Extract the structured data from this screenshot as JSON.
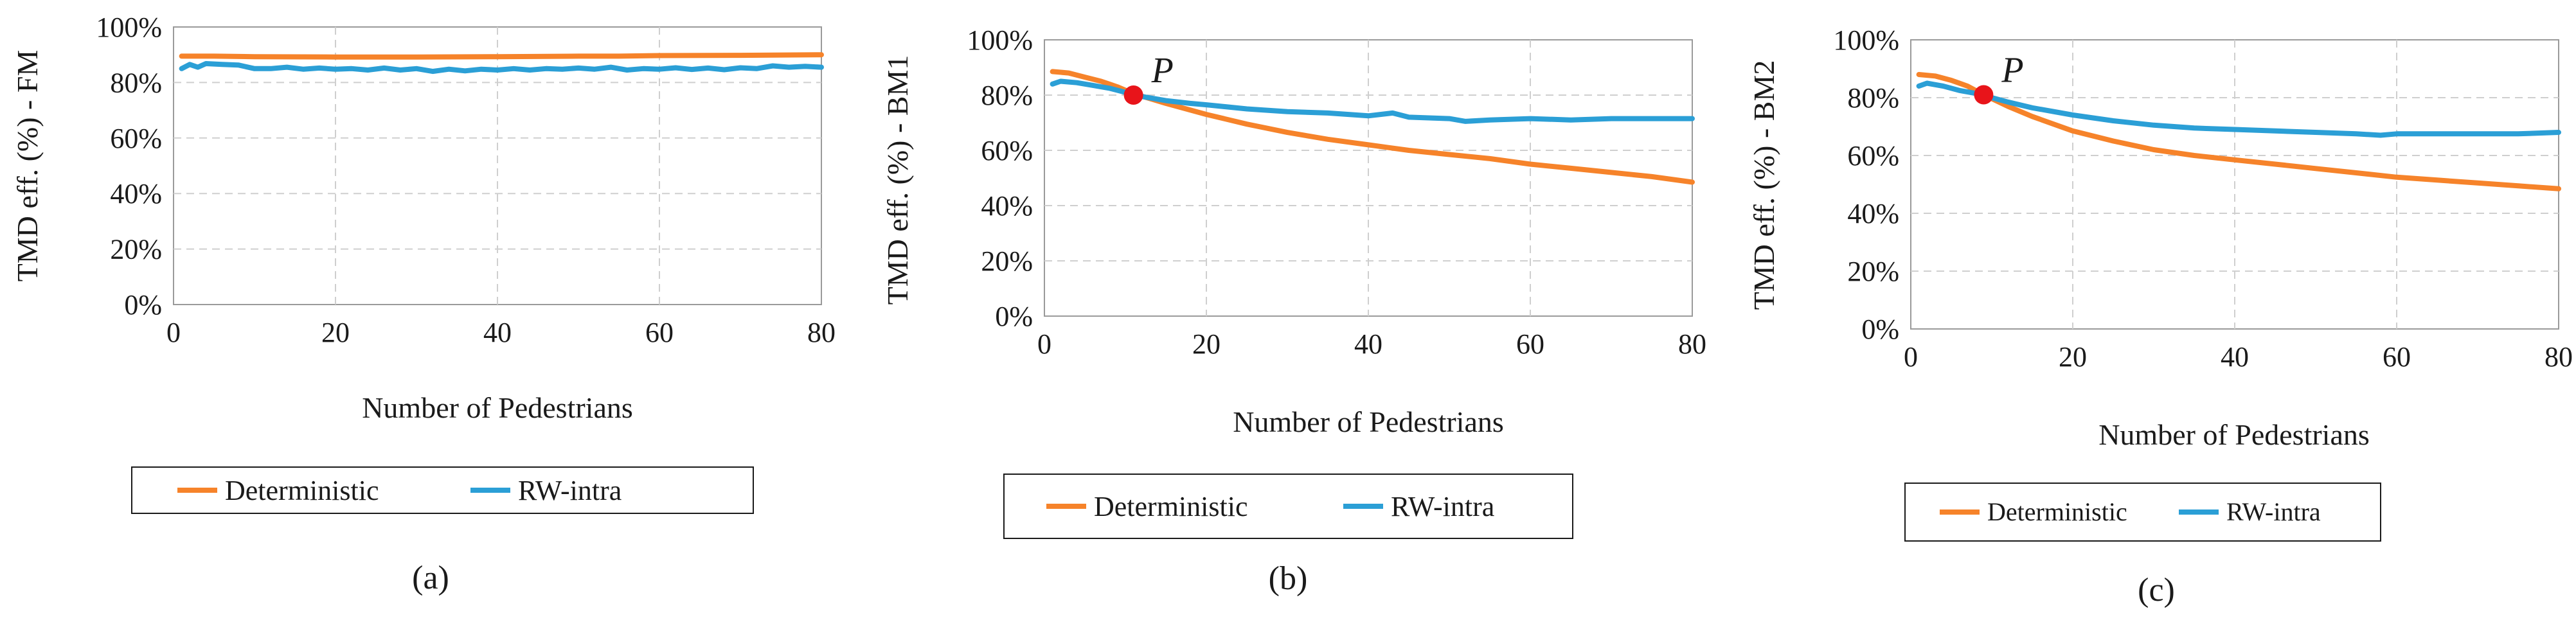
{
  "colors": {
    "deterministic": "#f6832a",
    "rw_intra": "#2b9fd6",
    "grid": "#cfcfcf",
    "axis": "#9a9a9a",
    "marker": "#e8141a"
  },
  "chart_data": [
    {
      "type": "line",
      "panel_label": "(a)",
      "xlabel": "Number of Pedestrians",
      "ylabel": "TMD eff. (%) - FM",
      "xlim": [
        0,
        80
      ],
      "ylim": [
        0,
        100
      ],
      "x_ticks": [
        "0",
        "20",
        "40",
        "60",
        "80"
      ],
      "y_ticks": [
        "0%",
        "20%",
        "40%",
        "60%",
        "80%",
        "100%"
      ],
      "legend": [
        "Deterministic",
        "RW-intra"
      ],
      "series": [
        {
          "name": "Deterministic",
          "x": [
            1,
            5,
            10,
            20,
            30,
            40,
            50,
            55,
            60,
            70,
            80
          ],
          "y": [
            89.5,
            89.5,
            89.3,
            89.2,
            89.2,
            89.3,
            89.5,
            89.5,
            89.7,
            89.8,
            90.0
          ]
        },
        {
          "name": "RW-intra",
          "x": [
            1,
            2,
            3,
            4,
            6,
            8,
            10,
            12,
            14,
            16,
            18,
            20,
            22,
            24,
            26,
            28,
            30,
            32,
            34,
            36,
            38,
            40,
            42,
            44,
            46,
            48,
            50,
            52,
            54,
            56,
            58,
            60,
            62,
            64,
            66,
            68,
            70,
            72,
            74,
            76,
            78,
            80
          ],
          "y": [
            85.0,
            86.5,
            85.5,
            86.8,
            86.5,
            86.3,
            85.0,
            85.0,
            85.5,
            84.8,
            85.2,
            84.8,
            85.0,
            84.5,
            85.2,
            84.5,
            85.0,
            84.0,
            84.8,
            84.2,
            84.8,
            84.5,
            85.0,
            84.5,
            85.0,
            84.8,
            85.2,
            84.8,
            85.5,
            84.5,
            85.0,
            84.8,
            85.3,
            84.7,
            85.2,
            84.6,
            85.3,
            85.0,
            86.0,
            85.5,
            85.8,
            85.5
          ]
        }
      ]
    },
    {
      "type": "line",
      "panel_label": "(b)",
      "xlabel": "Number of Pedestrians",
      "ylabel": "TMD eff. (%) - BM1",
      "xlim": [
        0,
        80
      ],
      "ylim": [
        0,
        100
      ],
      "x_ticks": [
        "0",
        "20",
        "40",
        "60",
        "80"
      ],
      "y_ticks": [
        "0%",
        "20%",
        "40%",
        "60%",
        "80%",
        "100%"
      ],
      "legend": [
        "Deterministic",
        "RW-intra"
      ],
      "annotation": {
        "text": "P",
        "x": 11,
        "y": 80
      },
      "series": [
        {
          "name": "Deterministic",
          "x": [
            1,
            3,
            5,
            7,
            9,
            11,
            15,
            20,
            25,
            30,
            35,
            40,
            45,
            50,
            55,
            60,
            65,
            70,
            75,
            80
          ],
          "y": [
            88.5,
            88.0,
            86.5,
            85.0,
            83.0,
            80.5,
            77.0,
            73.0,
            69.5,
            66.5,
            64.0,
            62.0,
            60.0,
            58.5,
            57.0,
            55.0,
            53.5,
            52.0,
            50.5,
            48.5
          ]
        },
        {
          "name": "RW-intra",
          "x": [
            1,
            2,
            4,
            6,
            8,
            10,
            12,
            15,
            18,
            20,
            25,
            30,
            35,
            40,
            43,
            45,
            50,
            52,
            55,
            60,
            65,
            70,
            75,
            80
          ],
          "y": [
            84.0,
            85.0,
            84.5,
            83.5,
            82.5,
            81.0,
            79.5,
            78.0,
            77.0,
            76.5,
            75.0,
            74.0,
            73.5,
            72.5,
            73.5,
            72.0,
            71.5,
            70.5,
            71.0,
            71.5,
            71.0,
            71.5,
            71.5,
            71.5
          ]
        }
      ]
    },
    {
      "type": "line",
      "panel_label": "(c)",
      "xlabel": "Number of Pedestrians",
      "ylabel": "TMD eff. (%) - BM2",
      "xlim": [
        0,
        80
      ],
      "ylim": [
        0,
        100
      ],
      "x_ticks": [
        "0",
        "20",
        "40",
        "60",
        "80"
      ],
      "y_ticks": [
        "0%",
        "20%",
        "40%",
        "60%",
        "80%",
        "100%"
      ],
      "legend": [
        "Deterministic",
        "RW-intra"
      ],
      "annotation": {
        "text": "P",
        "x": 9,
        "y": 81
      },
      "series": [
        {
          "name": "Deterministic",
          "x": [
            1,
            3,
            5,
            7,
            9,
            12,
            15,
            20,
            25,
            30,
            35,
            40,
            45,
            50,
            55,
            60,
            65,
            70,
            75,
            80
          ],
          "y": [
            88.0,
            87.5,
            86.0,
            84.0,
            81.0,
            77.0,
            73.5,
            68.5,
            65.0,
            62.0,
            60.0,
            58.5,
            57.0,
            55.5,
            54.0,
            52.5,
            51.5,
            50.5,
            49.5,
            48.5
          ]
        },
        {
          "name": "RW-intra",
          "x": [
            1,
            2,
            4,
            6,
            8,
            10,
            12,
            15,
            18,
            20,
            25,
            30,
            35,
            40,
            45,
            50,
            55,
            58,
            60,
            65,
            70,
            75,
            80
          ],
          "y": [
            84.0,
            85.0,
            84.0,
            82.5,
            81.5,
            80.0,
            78.5,
            76.5,
            75.0,
            74.0,
            72.0,
            70.5,
            69.5,
            69.0,
            68.5,
            68.0,
            67.5,
            67.0,
            67.5,
            67.5,
            67.5,
            67.5,
            68.0
          ]
        }
      ]
    }
  ]
}
